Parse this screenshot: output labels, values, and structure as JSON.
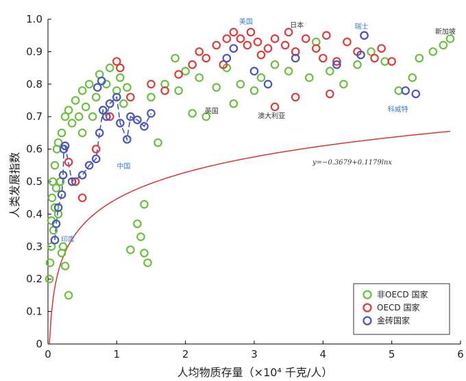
{
  "chart_data": {
    "type": "scatter",
    "xlabel": "人均物质存量（×10⁴ 千克/人）",
    "ylabel": "人类发展指数",
    "xlim": [
      0,
      6
    ],
    "ylim": [
      0,
      1.0
    ],
    "xticks": [
      "0",
      "1",
      "2",
      "3",
      "4",
      "5",
      "6"
    ],
    "yticks": [
      "0",
      "0.1",
      "0.2",
      "0.3",
      "0.4",
      "0.5",
      "0.6",
      "0.7",
      "0.8",
      "0.9",
      "1.0"
    ],
    "grid": false,
    "legend_position": "bottom-right",
    "equation": "y=−0.3679+0.1179lnx",
    "fit": {
      "intercept": -0.3679,
      "slope": 0.1179,
      "color": "#e03030"
    },
    "series": [
      {
        "name": "非OECD 国家",
        "color": "#6abf3f",
        "points": [
          [
            0.02,
            0.2
          ],
          [
            0.03,
            0.25
          ],
          [
            0.05,
            0.3
          ],
          [
            0.05,
            0.38
          ],
          [
            0.06,
            0.45
          ],
          [
            0.07,
            0.5
          ],
          [
            0.08,
            0.35
          ],
          [
            0.1,
            0.42
          ],
          [
            0.1,
            0.55
          ],
          [
            0.12,
            0.48
          ],
          [
            0.13,
            0.6
          ],
          [
            0.15,
            0.4
          ],
          [
            0.15,
            0.62
          ],
          [
            0.18,
            0.5
          ],
          [
            0.2,
            0.65
          ],
          [
            0.2,
            0.28
          ],
          [
            0.22,
            0.3
          ],
          [
            0.25,
            0.7
          ],
          [
            0.25,
            0.24
          ],
          [
            0.3,
            0.15
          ],
          [
            0.3,
            0.72
          ],
          [
            0.35,
            0.68
          ],
          [
            0.4,
            0.75
          ],
          [
            0.45,
            0.7
          ],
          [
            0.5,
            0.78
          ],
          [
            0.5,
            0.65
          ],
          [
            0.55,
            0.73
          ],
          [
            0.6,
            0.8
          ],
          [
            0.65,
            0.7
          ],
          [
            0.7,
            0.76
          ],
          [
            0.75,
            0.83
          ],
          [
            0.8,
            0.72
          ],
          [
            0.85,
            0.8
          ],
          [
            0.9,
            0.85
          ],
          [
            1.0,
            0.78
          ],
          [
            1.05,
            0.82
          ],
          [
            1.1,
            0.74
          ],
          [
            1.15,
            0.79
          ],
          [
            1.2,
            0.29
          ],
          [
            1.3,
            0.37
          ],
          [
            1.35,
            0.33
          ],
          [
            1.4,
            0.43
          ],
          [
            1.4,
            0.28
          ],
          [
            1.45,
            0.25
          ],
          [
            1.5,
            0.76
          ],
          [
            1.6,
            0.62
          ],
          [
            1.7,
            0.8
          ],
          [
            1.85,
            0.88
          ],
          [
            1.9,
            0.78
          ],
          [
            2.0,
            0.84
          ],
          [
            2.1,
            0.71
          ],
          [
            2.2,
            0.82
          ],
          [
            2.3,
            0.7
          ],
          [
            2.45,
            0.79
          ],
          [
            2.6,
            0.85
          ],
          [
            2.7,
            0.74
          ],
          [
            2.8,
            0.8
          ],
          [
            3.0,
            0.78
          ],
          [
            3.1,
            0.82
          ],
          [
            3.3,
            0.86
          ],
          [
            3.5,
            0.84
          ],
          [
            3.6,
            0.9
          ],
          [
            3.8,
            0.82
          ],
          [
            3.9,
            0.93
          ],
          [
            4.1,
            0.84
          ],
          [
            4.3,
            0.8
          ],
          [
            4.5,
            0.86
          ],
          [
            4.7,
            0.9
          ],
          [
            4.9,
            0.87
          ],
          [
            5.1,
            0.78
          ],
          [
            5.3,
            0.82
          ],
          [
            5.4,
            0.88
          ],
          [
            5.6,
            0.9
          ],
          [
            5.75,
            0.92
          ],
          [
            5.85,
            0.94
          ]
        ]
      },
      {
        "name": "OECD 国家",
        "color": "#e03b3b",
        "points": [
          [
            0.3,
            0.56
          ],
          [
            0.4,
            0.5
          ],
          [
            0.5,
            0.45
          ],
          [
            0.7,
            0.6
          ],
          [
            0.9,
            0.7
          ],
          [
            1.0,
            0.87
          ],
          [
            1.05,
            0.85
          ],
          [
            1.2,
            0.76
          ],
          [
            1.5,
            0.8
          ],
          [
            1.7,
            0.78
          ],
          [
            1.9,
            0.83
          ],
          [
            2.1,
            0.86
          ],
          [
            2.2,
            0.9
          ],
          [
            2.3,
            0.88
          ],
          [
            2.45,
            0.92
          ],
          [
            2.55,
            0.86
          ],
          [
            2.6,
            0.94
          ],
          [
            2.7,
            0.96
          ],
          [
            2.8,
            0.94
          ],
          [
            2.9,
            0.92
          ],
          [
            2.95,
            0.96
          ],
          [
            3.05,
            0.93
          ],
          [
            3.1,
            0.89
          ],
          [
            3.2,
            0.91
          ],
          [
            3.3,
            0.94
          ],
          [
            3.45,
            0.92
          ],
          [
            3.5,
            0.96
          ],
          [
            3.6,
            0.9
          ],
          [
            3.75,
            0.94
          ],
          [
            3.9,
            0.91
          ],
          [
            4.0,
            0.88
          ],
          [
            4.05,
            0.95
          ],
          [
            4.2,
            0.87
          ],
          [
            4.35,
            0.93
          ],
          [
            4.5,
            0.9
          ],
          [
            4.6,
            0.95
          ],
          [
            4.75,
            0.88
          ],
          [
            4.85,
            0.91
          ],
          [
            5.0,
            0.87
          ],
          [
            3.3,
            0.73
          ],
          [
            3.6,
            0.76
          ],
          [
            4.1,
            0.77
          ]
        ]
      },
      {
        "name": "金砖国家",
        "color": "#4a54c0",
        "points": [
          [
            0.1,
            0.32
          ],
          [
            0.12,
            0.37
          ],
          [
            0.15,
            0.42
          ],
          [
            0.2,
            0.46
          ],
          [
            0.22,
            0.52
          ],
          [
            0.23,
            0.6
          ],
          [
            0.25,
            0.61
          ],
          [
            0.35,
            0.5
          ],
          [
            0.5,
            0.52
          ],
          [
            0.6,
            0.55
          ],
          [
            0.7,
            0.57
          ],
          [
            0.75,
            0.65
          ],
          [
            0.8,
            0.72
          ],
          [
            0.85,
            0.7
          ],
          [
            0.9,
            0.74
          ],
          [
            1.0,
            0.76
          ],
          [
            1.05,
            0.68
          ],
          [
            1.15,
            0.63
          ],
          [
            1.2,
            0.7
          ],
          [
            1.3,
            0.69
          ],
          [
            1.4,
            0.67
          ],
          [
            1.5,
            0.71
          ],
          [
            0.72,
            0.79
          ],
          [
            0.78,
            0.81
          ],
          [
            2.6,
            0.88
          ],
          [
            2.7,
            0.91
          ],
          [
            3.0,
            0.84
          ],
          [
            3.2,
            0.8
          ],
          [
            3.6,
            0.88
          ],
          [
            4.2,
            0.86
          ],
          [
            4.6,
            0.95
          ],
          [
            4.55,
            0.89
          ],
          [
            5.2,
            0.78
          ],
          [
            5.35,
            0.77
          ]
        ]
      }
    ],
    "annotations": [
      {
        "text": "美国",
        "x": 2.88,
        "y": 0.985,
        "color": "#3a7ac2"
      },
      {
        "text": "日本",
        "x": 3.62,
        "y": 0.975,
        "color": "#333333"
      },
      {
        "text": "瑞士",
        "x": 4.56,
        "y": 0.97,
        "color": "#3a7ac2"
      },
      {
        "text": "新加坡",
        "x": 5.78,
        "y": 0.955,
        "color": "#333333"
      },
      {
        "text": "英国",
        "x": 2.38,
        "y": 0.71,
        "color": "#333333"
      },
      {
        "text": "澳大利亚",
        "x": 3.25,
        "y": 0.695,
        "color": "#333333"
      },
      {
        "text": "科威特",
        "x": 5.09,
        "y": 0.715,
        "color": "#3a7ac2"
      },
      {
        "text": "中国",
        "x": 1.1,
        "y": 0.54,
        "color": "#3a7ac2"
      },
      {
        "text": "印度",
        "x": 0.29,
        "y": 0.315,
        "color": "#3a7ac2"
      }
    ]
  }
}
